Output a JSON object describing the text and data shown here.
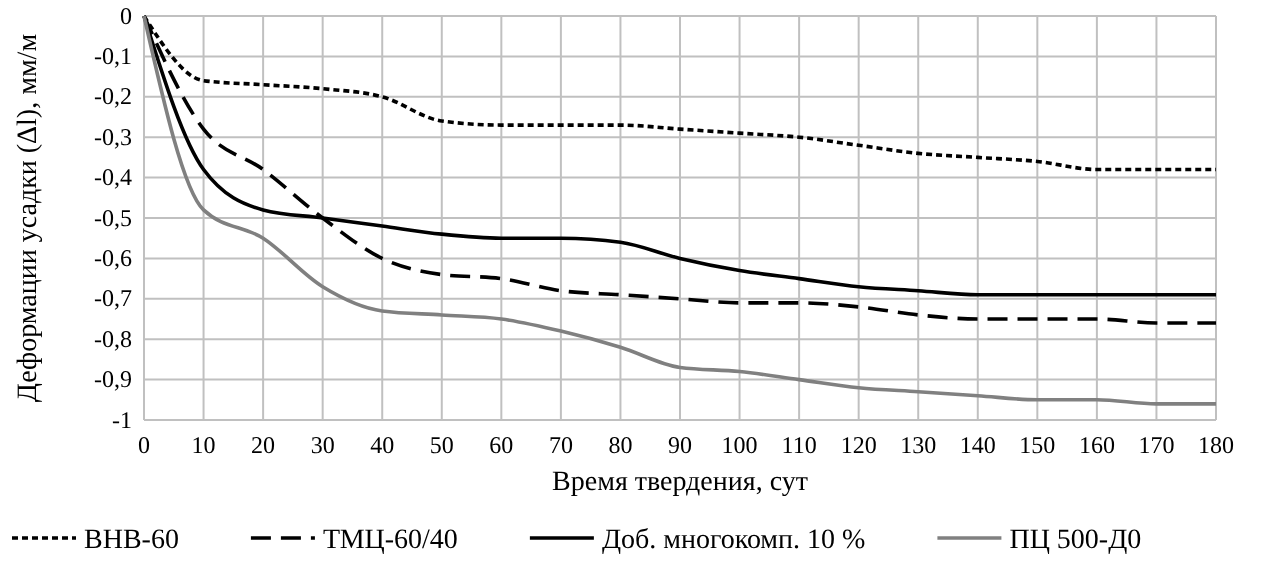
{
  "chart_data": {
    "type": "line",
    "xlabel": "Время твердения, сут",
    "ylabel": "Деформации усадки (Δl), мм/м",
    "x": [
      0,
      10,
      20,
      30,
      40,
      50,
      60,
      70,
      80,
      90,
      100,
      110,
      120,
      130,
      140,
      150,
      160,
      170,
      180
    ],
    "xlim": [
      0,
      180
    ],
    "xticks": [
      0,
      10,
      20,
      30,
      40,
      50,
      60,
      70,
      80,
      90,
      100,
      110,
      120,
      130,
      140,
      150,
      160,
      170,
      180
    ],
    "ylim": [
      -1,
      0
    ],
    "yticks": [
      0,
      {
        "value": -0.1,
        "label": "-0,1"
      },
      {
        "value": -0.2,
        "label": "-0,2"
      },
      {
        "value": -0.3,
        "label": "-0,3"
      },
      {
        "value": -0.4,
        "label": "-0,4"
      },
      {
        "value": -0.5,
        "label": "-0,5"
      },
      {
        "value": -0.6,
        "label": "-0,6"
      },
      {
        "value": -0.7,
        "label": "-0,7"
      },
      {
        "value": -0.8,
        "label": "-0,8"
      },
      {
        "value": -0.9,
        "label": "-0,9"
      },
      -1
    ],
    "grid": true,
    "legend": "bottom",
    "marker": "none",
    "series": [
      {
        "name": "ВНВ-60",
        "color": "#000000",
        "line_style": "dotted",
        "values": [
          0,
          -0.16,
          -0.17,
          -0.18,
          -0.2,
          -0.26,
          -0.27,
          -0.27,
          -0.27,
          -0.28,
          -0.29,
          -0.3,
          -0.32,
          -0.34,
          -0.35,
          -0.36,
          -0.38,
          -0.38,
          -0.38
        ]
      },
      {
        "name": "ТМЦ-60/40",
        "color": "#000000",
        "line_style": "dashed",
        "values": [
          0,
          -0.28,
          -0.38,
          -0.5,
          -0.6,
          -0.64,
          -0.65,
          -0.68,
          -0.69,
          -0.7,
          -0.71,
          -0.71,
          -0.72,
          -0.74,
          -0.75,
          -0.75,
          -0.75,
          -0.76,
          -0.76
        ]
      },
      {
        "name": "Доб. многокомп. 10 %",
        "color": "#000000",
        "line_style": "solid",
        "values": [
          0,
          -0.38,
          -0.48,
          -0.5,
          -0.52,
          -0.54,
          -0.55,
          -0.55,
          -0.56,
          -0.6,
          -0.63,
          -0.65,
          -0.67,
          -0.68,
          -0.69,
          -0.69,
          -0.69,
          -0.69,
          -0.69
        ]
      },
      {
        "name": "ПЦ 500-Д0",
        "color": "#808080",
        "line_style": "solid",
        "values": [
          0,
          -0.48,
          -0.55,
          -0.67,
          -0.73,
          -0.74,
          -0.75,
          -0.78,
          -0.82,
          -0.87,
          -0.88,
          -0.9,
          -0.92,
          -0.93,
          -0.94,
          -0.95,
          -0.95,
          -0.96,
          -0.96
        ]
      }
    ]
  }
}
